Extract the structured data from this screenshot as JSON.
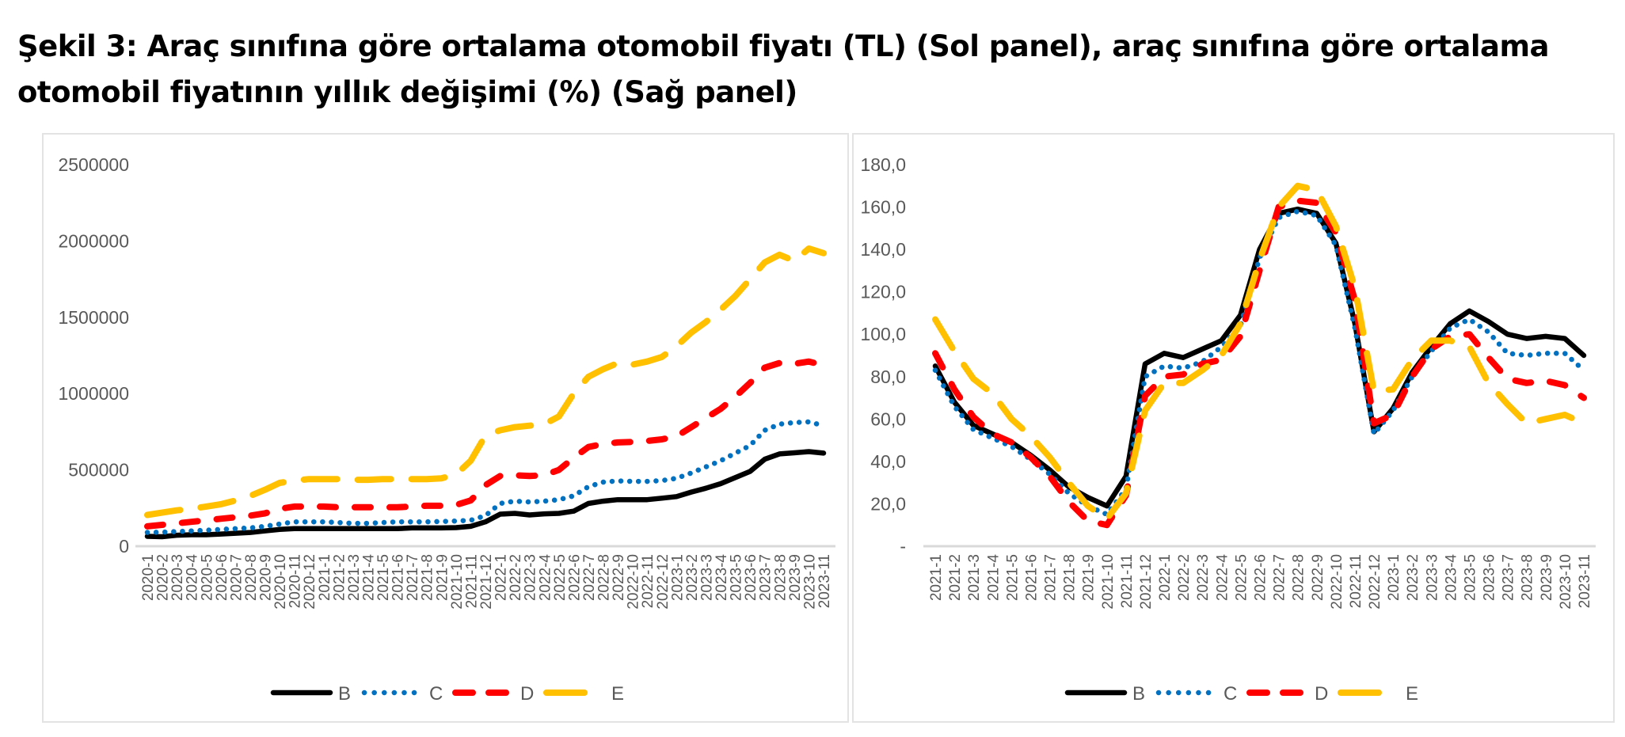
{
  "title": "Şekil 3: Araç sınıfına göre ortalama otomobil fiyatı (TL) (Sol panel), araç sınıfına göre ortalama otomobil fiyatının yıllık değişimi (%) (Sağ panel)",
  "title_lines": [
    "Şekil 3: Araç sınıfına göre ortalama otomobil fiyatı (TL) (Sol panel), araç sınıfına göre ortalama",
    "otomobil fiyatının yıllık değişimi (%) (Sağ panel)"
  ],
  "colors": {
    "B": "#000000",
    "C": "#0070c0",
    "D": "#ff0000",
    "E": "#ffc000",
    "axis": "#d9d9d9",
    "tick_text": "#595959"
  },
  "chart_data": [
    {
      "type": "line",
      "title": "Araç sınıfına göre ortalama otomobil fiyatı (TL)",
      "panel": "left",
      "xlabel": "",
      "ylabel": "",
      "ylim": [
        0,
        2500000
      ],
      "yticks": [
        0,
        500000,
        1000000,
        1500000,
        2000000,
        2500000
      ],
      "ytick_labels": [
        "0",
        "500000",
        "1000000",
        "1500000",
        "2000000",
        "2500000"
      ],
      "grid": false,
      "legend": "bottom",
      "categories": [
        "2020-1",
        "2020-2",
        "2020-3",
        "2020-4",
        "2020-5",
        "2020-6",
        "2020-7",
        "2020-8",
        "2020-9",
        "2020-10",
        "2020-11",
        "2020-12",
        "2021-1",
        "2021-2",
        "2021-3",
        "2021-4",
        "2021-5",
        "2021-6",
        "2021-7",
        "2021-8",
        "2021-9",
        "2021-10",
        "2021-11",
        "2021-12",
        "2022-1",
        "2022-2",
        "2022-3",
        "2022-4",
        "2022-5",
        "2022-6",
        "2022-7",
        "2022-8",
        "2022-9",
        "2022-10",
        "2022-11",
        "2022-12",
        "2023-1",
        "2023-2",
        "2023-3",
        "2023-4",
        "2023-5",
        "2023-6",
        "2023-7",
        "2023-8",
        "2023-9",
        "2023-10",
        "2023-11"
      ],
      "series": [
        {
          "name": "B",
          "style": "solid",
          "values": [
            65000,
            62000,
            72000,
            75000,
            75000,
            80000,
            85000,
            90000,
            100000,
            110000,
            115000,
            115000,
            115000,
            115000,
            115000,
            115000,
            115000,
            115000,
            120000,
            120000,
            120000,
            122000,
            130000,
            160000,
            210000,
            215000,
            205000,
            212000,
            215000,
            230000,
            280000,
            295000,
            305000,
            305000,
            305000,
            315000,
            325000,
            355000,
            380000,
            410000,
            450000,
            490000,
            570000,
            605000,
            612000,
            620000,
            610000
          ]
        },
        {
          "name": "C",
          "style": "dotted",
          "values": [
            90000,
            92000,
            96000,
            100000,
            105000,
            110000,
            115000,
            120000,
            130000,
            145000,
            160000,
            160000,
            160000,
            155000,
            150000,
            150000,
            155000,
            160000,
            160000,
            160000,
            162000,
            165000,
            170000,
            200000,
            280000,
            295000,
            290000,
            295000,
            305000,
            330000,
            390000,
            420000,
            428000,
            425000,
            425000,
            430000,
            445000,
            480000,
            520000,
            560000,
            610000,
            660000,
            760000,
            800000,
            810000,
            815000,
            790000
          ]
        },
        {
          "name": "D",
          "style": "dashed",
          "values": [
            130000,
            140000,
            150000,
            160000,
            170000,
            180000,
            190000,
            200000,
            215000,
            245000,
            260000,
            260000,
            260000,
            255000,
            255000,
            255000,
            255000,
            255000,
            260000,
            265000,
            265000,
            270000,
            300000,
            400000,
            460000,
            465000,
            460000,
            465000,
            500000,
            580000,
            650000,
            670000,
            680000,
            683000,
            690000,
            700000,
            720000,
            780000,
            840000,
            900000,
            980000,
            1070000,
            1170000,
            1200000,
            1195000,
            1210000,
            1185000
          ]
        },
        {
          "name": "E",
          "style": "long-dashed",
          "values": [
            205000,
            220000,
            235000,
            245000,
            260000,
            275000,
            300000,
            330000,
            370000,
            415000,
            430000,
            440000,
            440000,
            440000,
            435000,
            435000,
            440000,
            440000,
            440000,
            440000,
            445000,
            470000,
            560000,
            725000,
            760000,
            780000,
            790000,
            800000,
            850000,
            1000000,
            1110000,
            1160000,
            1200000,
            1190000,
            1210000,
            1240000,
            1310000,
            1400000,
            1470000,
            1550000,
            1640000,
            1750000,
            1860000,
            1910000,
            1870000,
            1950000,
            1920000
          ]
        }
      ]
    },
    {
      "type": "line",
      "title": "Araç sınıfına göre ortalama otomobil fiyatının yıllık değişimi (%)",
      "panel": "right",
      "xlabel": "",
      "ylabel": "",
      "ylim": [
        0,
        180
      ],
      "yticks": [
        0,
        20,
        40,
        60,
        80,
        100,
        120,
        140,
        160,
        180
      ],
      "ytick_labels": [
        "-",
        "20,0",
        "40,0",
        "60,0",
        "80,0",
        "100,0",
        "120,0",
        "140,0",
        "160,0",
        "180,0"
      ],
      "grid": false,
      "legend": "bottom",
      "categories": [
        "2021-1",
        "2021-2",
        "2021-3",
        "2021-4",
        "2021-5",
        "2021-6",
        "2021-7",
        "2021-8",
        "2021-9",
        "2021-10",
        "2021-11",
        "2021-12",
        "2022-1",
        "2022-2",
        "2022-3",
        "2022-4",
        "2022-5",
        "2022-6",
        "2022-7",
        "2022-8",
        "2022-9",
        "2022-10",
        "2022-11",
        "2022-12",
        "2023-1",
        "2023-2",
        "2023-3",
        "2023-4",
        "2023-5",
        "2023-6",
        "2023-7",
        "2023-8",
        "2023-9",
        "2023-10",
        "2023-11"
      ],
      "series": [
        {
          "name": "B",
          "style": "solid",
          "values": [
            85,
            68,
            57,
            53,
            49,
            43,
            36,
            28,
            23,
            19,
            33,
            86,
            91,
            89,
            93,
            97,
            109,
            140,
            157,
            159,
            157,
            143,
            105,
            54,
            65,
            82,
            94,
            105,
            111,
            106,
            100,
            98,
            99,
            98,
            90
          ]
        },
        {
          "name": "C",
          "style": "dotted",
          "values": [
            83,
            66,
            55,
            51,
            47,
            41,
            34,
            25,
            19,
            15,
            27,
            80,
            85,
            84,
            87,
            94,
            104,
            136,
            155,
            158,
            156,
            142,
            103,
            53,
            64,
            80,
            92,
            103,
            107,
            101,
            91,
            90,
            91,
            91,
            83
          ]
        },
        {
          "name": "D",
          "style": "dashed",
          "values": [
            91,
            74,
            61,
            53,
            49,
            42,
            33,
            21,
            12,
            10,
            24,
            71,
            80,
            81,
            86,
            88,
            99,
            130,
            160,
            163,
            162,
            148,
            116,
            58,
            62,
            80,
            93,
            99,
            100,
            89,
            79,
            77,
            78,
            76,
            70
          ]
        },
        {
          "name": "E",
          "style": "long-dashed",
          "values": [
            107,
            92,
            79,
            72,
            60,
            52,
            42,
            30,
            19,
            13,
            25,
            64,
            77,
            77,
            83,
            90,
            105,
            135,
            160,
            170,
            168,
            151,
            122,
            73,
            74,
            88,
            97,
            97,
            94,
            77,
            67,
            58,
            60,
            62,
            58
          ]
        }
      ]
    }
  ]
}
